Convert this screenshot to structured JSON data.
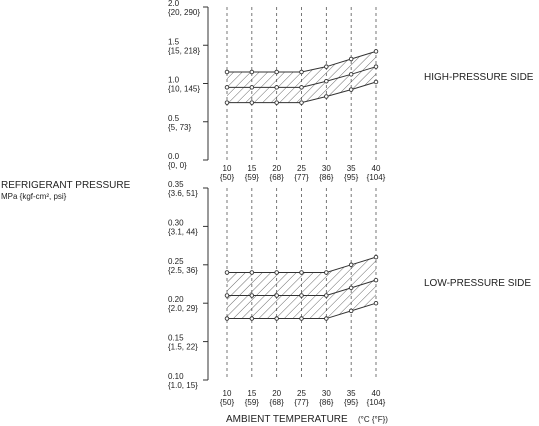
{
  "chart_data": [
    {
      "type": "area",
      "name": "high",
      "side_label": "HIGH-PRESSURE SIDE",
      "ylim": [
        0,
        2.0
      ],
      "y_ticks": [
        {
          "value": 2.0,
          "label": "2.0",
          "sub": "{20, 290}"
        },
        {
          "value": 1.5,
          "label": "1.5",
          "sub": "{15, 218}"
        },
        {
          "value": 1.0,
          "label": "1.0",
          "sub": "{10, 145}"
        },
        {
          "value": 0.5,
          "label": "0.5",
          "sub": "{5, 73}"
        },
        {
          "value": 0.0,
          "label": "0.0",
          "sub": "{0, 0}"
        }
      ],
      "x": [
        10,
        15,
        20,
        25,
        30,
        35,
        40
      ],
      "x_labels": [
        "10",
        "15",
        "20",
        "25",
        "30",
        "35",
        "40"
      ],
      "x_sublabels": [
        "{50}",
        "{59}",
        "{68}",
        "{77}",
        "{86}",
        "{95}",
        "{104}"
      ],
      "series": [
        {
          "role": "upper",
          "values": [
            1.15,
            1.15,
            1.15,
            1.15,
            1.22,
            1.32,
            1.42
          ]
        },
        {
          "role": "middle",
          "values": [
            0.95,
            0.95,
            0.95,
            0.95,
            1.03,
            1.12,
            1.22
          ]
        },
        {
          "role": "lower",
          "values": [
            0.75,
            0.75,
            0.75,
            0.75,
            0.83,
            0.92,
            1.02
          ]
        }
      ]
    },
    {
      "type": "area",
      "name": "low",
      "side_label": "LOW-PRESSURE SIDE",
      "ylim": [
        0.1,
        0.35
      ],
      "y_ticks": [
        {
          "value": 0.35,
          "label": "0.35",
          "sub": "{3.6, 51}"
        },
        {
          "value": 0.3,
          "label": "0.30",
          "sub": "{3.1, 44}"
        },
        {
          "value": 0.25,
          "label": "0.25",
          "sub": "{2.5, 36}"
        },
        {
          "value": 0.2,
          "label": "0.20",
          "sub": "{2.0, 29}"
        },
        {
          "value": 0.15,
          "label": "0.15",
          "sub": "{1.5, 22}"
        },
        {
          "value": 0.1,
          "label": "0.10",
          "sub": "{1.0, 15}"
        }
      ],
      "x": [
        10,
        15,
        20,
        25,
        30,
        35,
        40
      ],
      "x_labels": [
        "10",
        "15",
        "20",
        "25",
        "30",
        "35",
        "40"
      ],
      "x_sublabels": [
        "{50}",
        "{59}",
        "{68}",
        "{77}",
        "{86}",
        "{95}",
        "{104}"
      ],
      "series": [
        {
          "role": "upper",
          "values": [
            0.24,
            0.24,
            0.24,
            0.24,
            0.24,
            0.25,
            0.26
          ]
        },
        {
          "role": "middle",
          "values": [
            0.21,
            0.21,
            0.21,
            0.21,
            0.21,
            0.22,
            0.23
          ]
        },
        {
          "role": "lower",
          "values": [
            0.18,
            0.18,
            0.18,
            0.18,
            0.18,
            0.19,
            0.2
          ]
        }
      ]
    }
  ],
  "labels": {
    "ylabel": "REFRIGERANT PRESSURE",
    "ylabel_units": "MPa {kgf-cm², psi}",
    "xlabel": "AMBIENT TEMPERATURE",
    "xlabel_units": "(°C {°F})"
  }
}
